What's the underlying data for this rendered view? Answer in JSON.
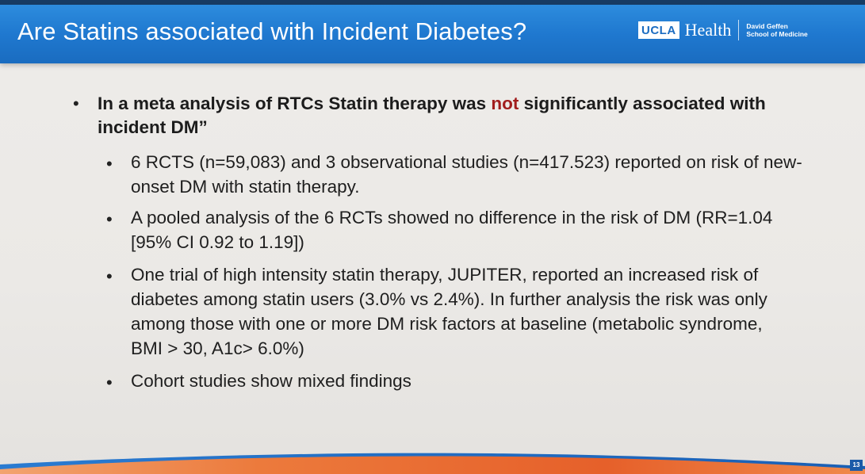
{
  "header": {
    "title": "Are Statins associated with Incident Diabetes?",
    "logo": {
      "ucla": "UCLA",
      "health": "Health",
      "school_line1": "David Geffen",
      "school_line2": "School of Medicine"
    }
  },
  "main_point": {
    "before": "In a meta analysis of RTCs Statin therapy was ",
    "highlight": "not",
    "after": " significantly associated with incident DM”"
  },
  "sub_points": [
    "6 RCTS (n=59,083) and 3 observational studies (n=417.523) reported on risk of new-onset DM with statin therapy.",
    "A pooled analysis of the 6 RCTs showed no difference in the risk of DM (RR=1.04 [95% CI 0.92 to 1.19])",
    "One trial of high intensity statin therapy, JUPITER, reported an increased risk of diabetes among statin users (3.0% vs 2.4%).  In further analysis the risk was only among those with one or more DM risk factors at baseline (metabolic syndrome, BMI > 30, A1c> 6.0%)",
    "Cohort studies show mixed findings"
  ],
  "slide_number": "13",
  "colors": {
    "header_blue": "#1f78cf",
    "highlight_red": "#a11d1d",
    "swoosh_orange": "#e8642c"
  }
}
